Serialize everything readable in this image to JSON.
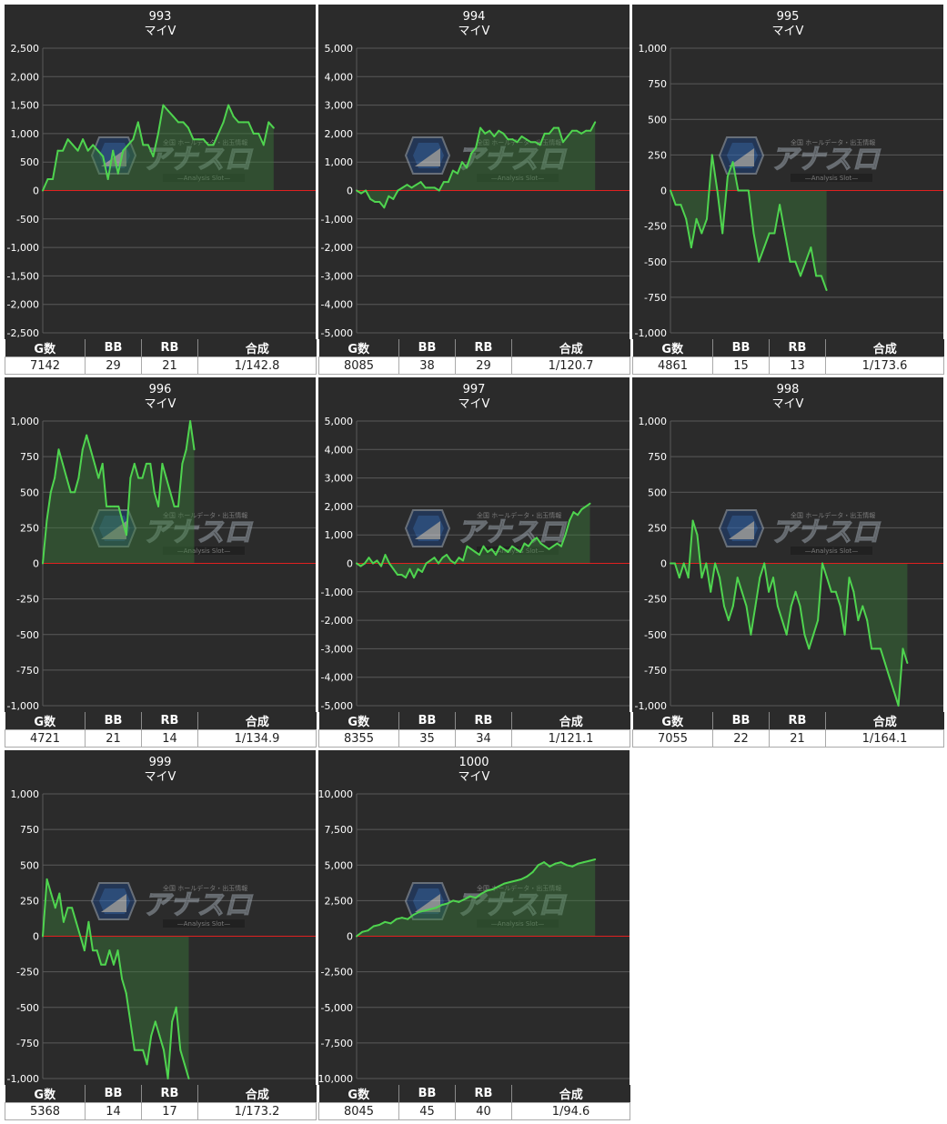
{
  "colors": {
    "background": "#2b2b2b",
    "grid": "#5a5a5a",
    "zero_line": "#e02020",
    "series_line": "#4fd44f",
    "area_fill": "#3a7a3a"
  },
  "watermark": {
    "title": "アナスロ",
    "subtitle": "—Analysis Slot—",
    "tagline": "全国 ホールデータ・出玉情報"
  },
  "table_headers": [
    "G数",
    "BB",
    "RB",
    "合成"
  ],
  "chart_data": [
    {
      "type": "area",
      "title": "993",
      "subtitle": "マイV",
      "ylim": [
        -2500,
        2500
      ],
      "yticks": [
        "2,500",
        "2,000",
        "1,500",
        "1,000",
        "500",
        "0",
        "-500",
        "-1,000",
        "-1,500",
        "-2,000",
        "-2,500"
      ],
      "values": [
        0,
        200,
        200,
        700,
        700,
        900,
        800,
        700,
        900,
        700,
        800,
        700,
        600,
        200,
        700,
        300,
        700,
        800,
        900,
        1200,
        800,
        800,
        600,
        1000,
        1500,
        1400,
        1300,
        1200,
        1200,
        1100,
        900,
        900,
        900,
        800,
        800,
        1000,
        1200,
        1500,
        1300,
        1200,
        1200,
        1200,
        1000,
        1000,
        800,
        1200,
        1100
      ],
      "x_end_fraction": 0.846,
      "stats": {
        "games": "7142",
        "bb": "29",
        "rb": "21",
        "combined": "1/142.8"
      }
    },
    {
      "type": "area",
      "title": "994",
      "subtitle": "マイV",
      "ylim": [
        -5000,
        5000
      ],
      "yticks": [
        "5,000",
        "4,000",
        "3,000",
        "2,000",
        "1,000",
        "0",
        "-1,000",
        "-2,000",
        "-3,000",
        "-4,000",
        "-5,000"
      ],
      "values": [
        0,
        -100,
        0,
        -300,
        -400,
        -400,
        -600,
        -200,
        -300,
        0,
        100,
        200,
        100,
        200,
        300,
        100,
        100,
        100,
        0,
        300,
        300,
        700,
        600,
        1000,
        800,
        1300,
        1500,
        2200,
        2000,
        2100,
        1900,
        2100,
        2000,
        1800,
        1800,
        1700,
        1900,
        1800,
        1700,
        1700,
        1600,
        2000,
        2000,
        2200,
        2200,
        1700,
        1900,
        2100,
        2100,
        2000,
        2100,
        2100,
        2400
      ],
      "x_end_fraction": 0.874,
      "stats": {
        "games": "8085",
        "bb": "38",
        "rb": "29",
        "combined": "1/120.7"
      }
    },
    {
      "type": "area",
      "title": "995",
      "subtitle": "マイV",
      "ylim": [
        -1000,
        1000
      ],
      "yticks": [
        "1,000",
        "750",
        "500",
        "250",
        "0",
        "-250",
        "-500",
        "-750",
        "-1,000"
      ],
      "values": [
        0,
        -100,
        -100,
        -200,
        -400,
        -200,
        -300,
        -200,
        250,
        0,
        -300,
        100,
        200,
        0,
        0,
        0,
        -300,
        -500,
        -400,
        -300,
        -300,
        -100,
        -300,
        -500,
        -500,
        -600,
        -500,
        -400,
        -600,
        -600,
        -700
      ],
      "x_end_fraction": 0.572,
      "stats": {
        "games": "4861",
        "bb": "15",
        "rb": "13",
        "combined": "1/173.6"
      }
    },
    {
      "type": "area",
      "title": "996",
      "subtitle": "マイV",
      "ylim": [
        -1000,
        1000
      ],
      "yticks": [
        "1,000",
        "750",
        "500",
        "250",
        "0",
        "-250",
        "-500",
        "-750",
        "-1,000"
      ],
      "values": [
        0,
        300,
        500,
        600,
        800,
        700,
        600,
        500,
        500,
        600,
        800,
        900,
        800,
        700,
        600,
        700,
        400,
        400,
        400,
        400,
        300,
        200,
        600,
        700,
        600,
        600,
        700,
        700,
        500,
        400,
        700,
        600,
        500,
        400,
        400,
        700,
        800,
        1000,
        800
      ],
      "x_end_fraction": 0.555,
      "stats": {
        "games": "4721",
        "bb": "21",
        "rb": "14",
        "combined": "1/134.9"
      }
    },
    {
      "type": "area",
      "title": "997",
      "subtitle": "マイV",
      "ylim": [
        -5000,
        5000
      ],
      "yticks": [
        "5,000",
        "4,000",
        "3,000",
        "2,000",
        "1,000",
        "0",
        "-1,000",
        "-2,000",
        "-3,000",
        "-4,000",
        "-5,000"
      ],
      "values": [
        0,
        -100,
        0,
        200,
        0,
        100,
        -100,
        300,
        0,
        -200,
        -400,
        -400,
        -500,
        -200,
        -500,
        -200,
        -300,
        0,
        100,
        200,
        0,
        200,
        300,
        100,
        0,
        200,
        100,
        600,
        500,
        400,
        300,
        600,
        400,
        500,
        300,
        600,
        500,
        400,
        600,
        500,
        400,
        700,
        600,
        800,
        900,
        700,
        600,
        500,
        600,
        700,
        600,
        1000,
        1500,
        1800,
        1700,
        1900,
        2000,
        2100
      ],
      "x_end_fraction": 0.855,
      "stats": {
        "games": "8355",
        "bb": "35",
        "rb": "34",
        "combined": "1/121.1"
      }
    },
    {
      "type": "area",
      "title": "998",
      "subtitle": "マイV",
      "ylim": [
        -1000,
        1000
      ],
      "yticks": [
        "1,000",
        "750",
        "500",
        "250",
        "0",
        "-250",
        "-500",
        "-750",
        "-1,000"
      ],
      "values": [
        0,
        0,
        -100,
        0,
        -100,
        300,
        200,
        -100,
        0,
        -200,
        0,
        -100,
        -300,
        -400,
        -300,
        -100,
        -200,
        -300,
        -500,
        -300,
        -100,
        0,
        -200,
        -100,
        -300,
        -400,
        -500,
        -300,
        -200,
        -300,
        -500,
        -600,
        -500,
        -400,
        0,
        -100,
        -200,
        -200,
        -300,
        -500,
        -100,
        -200,
        -400,
        -300,
        -400,
        -600,
        -600,
        -600,
        -700,
        -800,
        -900,
        -1000,
        -600,
        -700
      ],
      "x_end_fraction": 0.868,
      "stats": {
        "games": "7055",
        "bb": "22",
        "rb": "21",
        "combined": "1/164.1"
      }
    },
    {
      "type": "area",
      "title": "999",
      "subtitle": "マイV",
      "ylim": [
        -1000,
        1000
      ],
      "yticks": [
        "1,000",
        "750",
        "500",
        "250",
        "0",
        "-250",
        "-500",
        "-750",
        "-1,000"
      ],
      "values": [
        0,
        400,
        300,
        200,
        300,
        100,
        200,
        200,
        100,
        0,
        -100,
        100,
        -100,
        -100,
        -200,
        -200,
        -100,
        -200,
        -100,
        -300,
        -400,
        -600,
        -800,
        -800,
        -800,
        -900,
        -700,
        -600,
        -700,
        -800,
        -1000,
        -600,
        -500,
        -800,
        -900,
        -1000
      ],
      "x_end_fraction": 0.535,
      "stats": {
        "games": "5368",
        "bb": "14",
        "rb": "17",
        "combined": "1/173.2"
      }
    },
    {
      "type": "area",
      "title": "1000",
      "subtitle": "マイV",
      "ylim": [
        -10000,
        10000
      ],
      "yticks": [
        "10,000",
        "7,500",
        "5,000",
        "2,500",
        "0",
        "-2,500",
        "-5,000",
        "-7,500",
        "-10,000"
      ],
      "values": [
        0,
        300,
        400,
        700,
        800,
        1000,
        900,
        1200,
        1300,
        1200,
        1500,
        1700,
        1800,
        1900,
        2000,
        2200,
        2300,
        2500,
        2400,
        2600,
        2800,
        2700,
        3000,
        3200,
        3300,
        3500,
        3700,
        3800,
        3900,
        4000,
        4200,
        4500,
        5000,
        5200,
        4900,
        5100,
        5200,
        5000,
        4900,
        5100,
        5200,
        5300,
        5400
      ],
      "x_end_fraction": 0.874,
      "stats": {
        "games": "8045",
        "bb": "45",
        "rb": "40",
        "combined": "1/94.6"
      }
    }
  ]
}
